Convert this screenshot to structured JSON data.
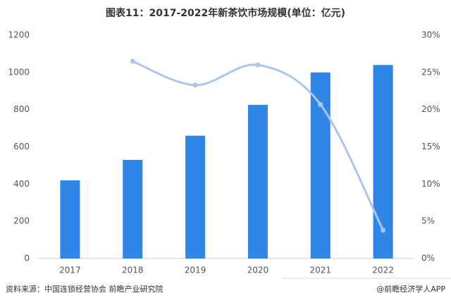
{
  "chart_data": {
    "type": "bar-line",
    "title": "图表11：2017-2022年新茶饮市场规模(单位：亿元)",
    "categories": [
      "2017",
      "2018",
      "2019",
      "2020",
      "2021",
      "2022"
    ],
    "series": [
      {
        "type": "bar",
        "color": "#2f86e6",
        "values": [
          420,
          530,
          660,
          826,
          1000,
          1040
        ]
      },
      {
        "type": "line",
        "axis": "y2",
        "color": "#aec4f0",
        "values": [
          null,
          26.5,
          23.3,
          26.0,
          20.7,
          3.8
        ]
      }
    ],
    "ylim": [
      0,
      1200
    ],
    "yticks": [
      0,
      200,
      400,
      600,
      800,
      1000,
      1200
    ],
    "y2lim": [
      0,
      30
    ],
    "y2ticks": [
      {
        "value": 0,
        "label": "0%"
      },
      {
        "value": 5,
        "label": "5%"
      },
      {
        "value": 10,
        "label": "10%"
      },
      {
        "value": 15,
        "label": "15%"
      },
      {
        "value": 20,
        "label": "20%"
      },
      {
        "value": 25,
        "label": "25%"
      },
      {
        "value": 30,
        "label": "30%"
      }
    ],
    "grid": false,
    "source": "资料来源：中国连锁经营协会 前瞻产业研究院",
    "credit": "@前瞻经济学人APP"
  }
}
